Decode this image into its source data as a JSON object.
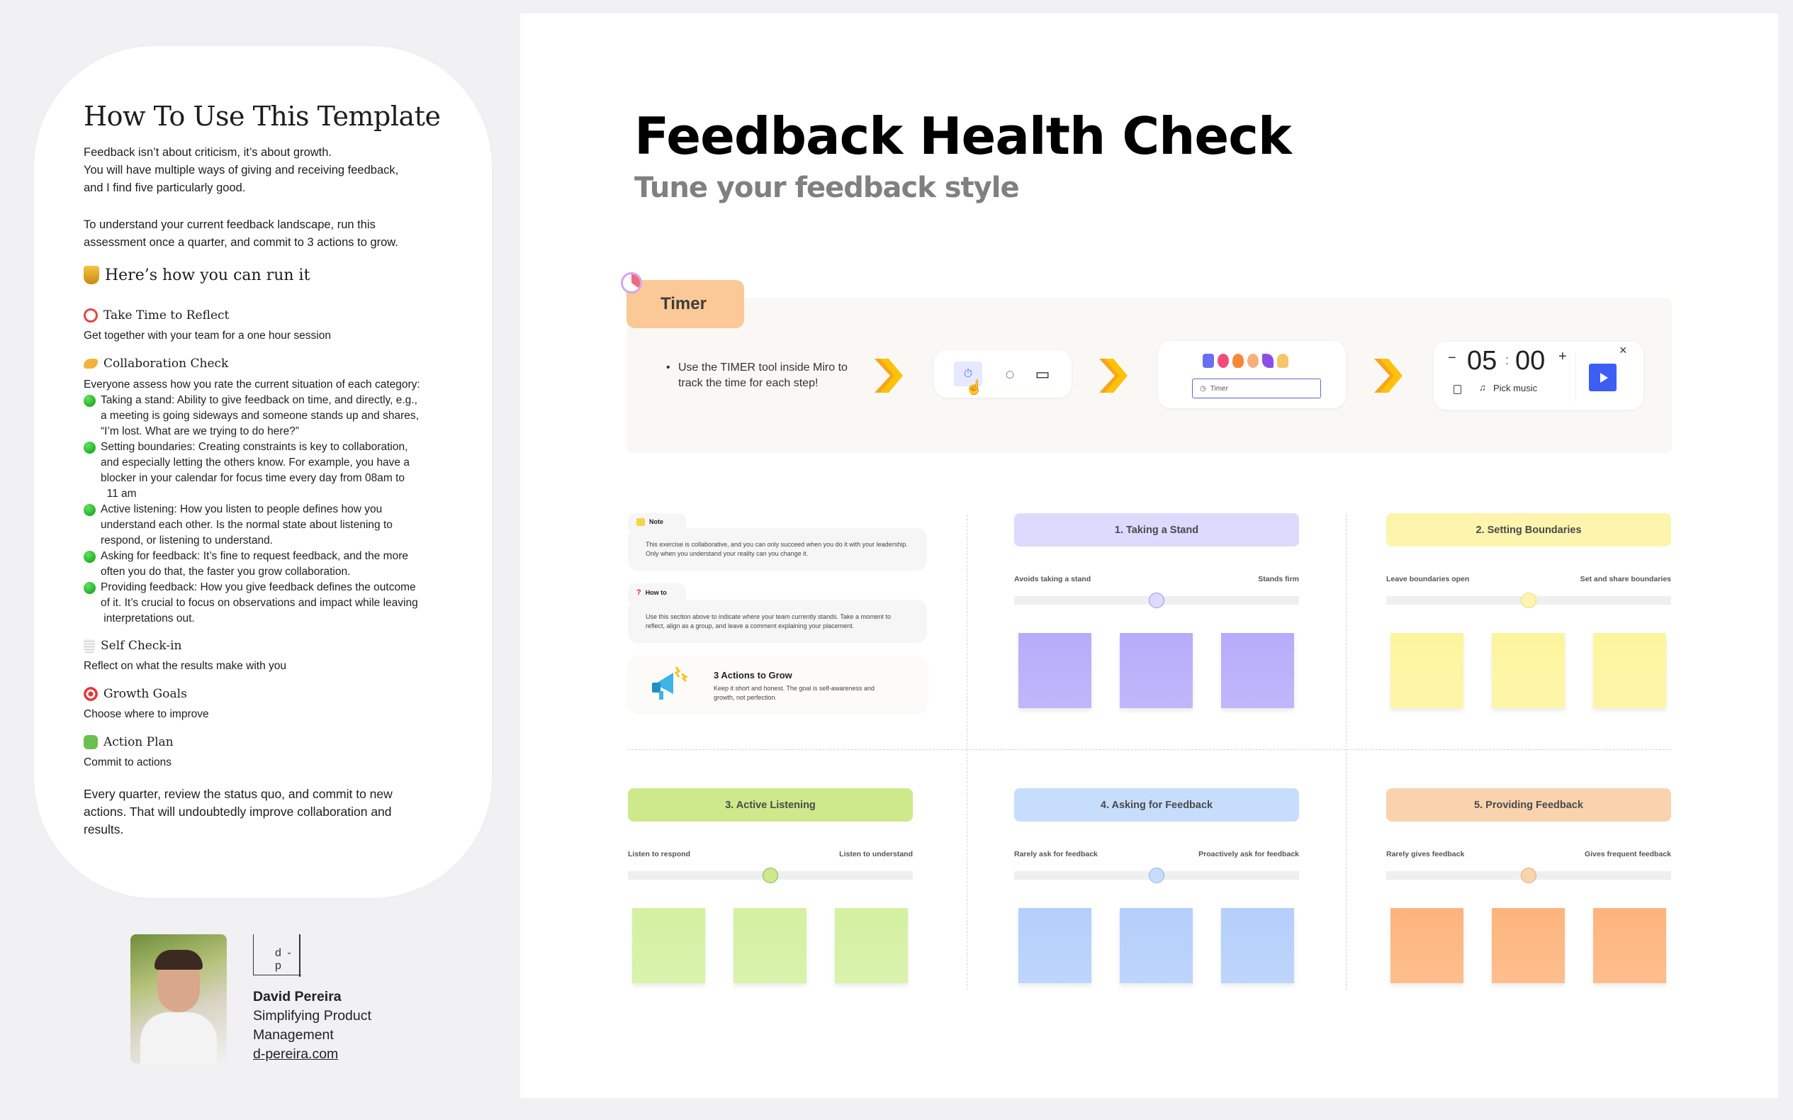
{
  "guide": {
    "title": "How To Use This Template",
    "intro": [
      "Feedback isn’t about criticism, it’s about growth.",
      "You will have multiple ways of giving and receiving feedback,",
      "and I find five particularly good."
    ],
    "intro2": [
      "To understand your current feedback landscape, run this",
      "assessment once a quarter, and commit to 3 actions to grow."
    ],
    "run_heading": "Here’s how you can run it",
    "steps": [
      {
        "icon": "alarm-clock-icon",
        "title": "Take Time to Reflect",
        "desc": "Get together with your team for a one hour session"
      },
      {
        "icon": "handshake-icon",
        "title": "Collaboration Check",
        "desc": "Everyone assess how you rate the current situation of each category:"
      },
      {
        "icon": "notepad-icon",
        "title": "Self Check-in",
        "desc": "Reflect on what the results make with you"
      },
      {
        "icon": "target-icon",
        "title": "Growth Goals",
        "desc": "Choose where to improve"
      },
      {
        "icon": "puzzle-icon",
        "title": "Action Plan",
        "desc": "Commit to actions"
      }
    ],
    "bullets": [
      [
        "Taking a stand: Ability to give feedback on time, and directly, e.g.,",
        "a meeting is going sideways and someone stands up and shares,",
        "“I’m lost. What are we trying to do here?”"
      ],
      [
        "Setting boundaries: Creating constraints is key to collaboration,",
        "and especially letting the others know. For example, you have a",
        "blocker in your calendar for focus time every day from 08am to",
        "  11 am"
      ],
      [
        "Active listening: How you listen to people defines how you",
        "understand each other. Is the normal state about listening to",
        "respond, or listening to understand."
      ],
      [
        "Asking for feedback: It’s fine to request feedback, and the more",
        "often you do that, the faster you grow collaboration."
      ],
      [
        "Providing feedback: How you give feedback defines the outcome",
        "of it. It’s crucial to focus on observations and impact while leaving",
        " interpretations out."
      ]
    ],
    "outro": [
      "Every quarter, review the status quo, and commit to new",
      "actions. That will undoubtedly improve collaboration and",
      "results."
    ]
  },
  "author": {
    "logo": "d - p",
    "name": "David Pereira",
    "tagline": [
      "Simplifying Product",
      "Management"
    ],
    "link": "d-pereira.com"
  },
  "header": {
    "title": "Feedback Health Check",
    "subtitle": "Tune your feedback style"
  },
  "timer": {
    "tab": "Timer",
    "instruction": [
      "Use the TIMER tool inside Miro to",
      "track the time for each step!"
    ],
    "search_placeholder": "Timer",
    "minutes": "05",
    "seconds": "00",
    "separator": ":",
    "minus": "−",
    "plus": "+",
    "music": "Pick music",
    "close": "×"
  },
  "note": {
    "label": "Note",
    "text": [
      "This exercise is collaborative, and you can only succeed when you do it with your leadership.",
      "Only when you understand your reality can you change it."
    ]
  },
  "howto": {
    "label": "How to",
    "icon": "?",
    "text": [
      "Use this section above to indicate where your team currently stands. Take a moment to",
      "reflect, align as a group, and leave a comment explaining your placement."
    ]
  },
  "actions": {
    "title": "3 Actions to Grow",
    "text": [
      "Keep it short and honest. The goal is self-awareness and",
      "growth, not perfection."
    ]
  },
  "categories": [
    {
      "title": "1. Taking a Stand",
      "left": "Avoids taking a stand",
      "right": "Stands firm",
      "value": 0.5,
      "header_color": "#dcdafd",
      "sticky_color": "#b7acfa",
      "thumb_color": "#dcdafd",
      "thumb_border": "#9d93e6"
    },
    {
      "title": "2. Setting Boundaries",
      "left": "Leave boundaries open",
      "right": "Set and share boundaries",
      "value": 0.5,
      "header_color": "#fdf4ad",
      "sticky_color": "#fdf59d",
      "thumb_color": "#fdf4ad",
      "thumb_border": "#e8dc7c"
    },
    {
      "title": "3. Active Listening",
      "left": "Listen to respond",
      "right": "Listen to understand",
      "value": 0.5,
      "header_color": "#cde98c",
      "sticky_color": "#d4f0a0",
      "thumb_color": "#cde98c",
      "thumb_border": "#79b95a"
    },
    {
      "title": "4. Asking for Feedback",
      "left": "Rarely ask for feedback",
      "right": "Proactively ask for feedback",
      "value": 0.5,
      "header_color": "#c7ddfc",
      "sticky_color": "#b4cffb",
      "thumb_color": "#c7ddfc",
      "thumb_border": "#8eb2ea"
    },
    {
      "title": "5. Providing Feedback",
      "left": "Rarely gives feedback",
      "right": "Gives frequent feedback",
      "value": 0.5,
      "header_color": "#f8d3ae",
      "sticky_color": "#fdb47c",
      "thumb_color": "#f8d3ae",
      "thumb_border": "#e6ad7a"
    }
  ],
  "colors": {
    "play_button": "#3d5ef5",
    "timer_tab": "#fbc897",
    "accent_chevron": "#f9b300"
  }
}
